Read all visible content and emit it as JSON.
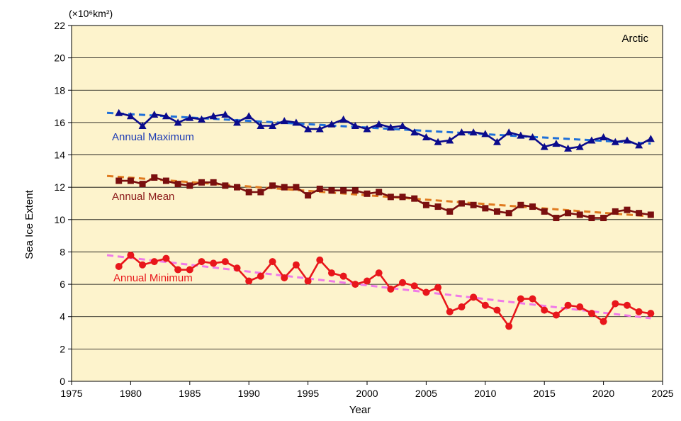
{
  "chart_data": {
    "type": "line",
    "title": "Arctic",
    "unit": "(×10⁶km²)",
    "xlabel": "Year",
    "ylabel": "Sea Ice Extent",
    "xlim": [
      1975,
      2025
    ],
    "ylim": [
      0,
      22
    ],
    "xticks": [
      1975,
      1980,
      1985,
      1990,
      1995,
      2000,
      2005,
      2010,
      2015,
      2020,
      2025
    ],
    "yticks": [
      0,
      2,
      4,
      6,
      8,
      10,
      12,
      14,
      16,
      18,
      20,
      22
    ],
    "grid": "horizontal",
    "background_color": "#FDF3CC",
    "years": [
      1979,
      1980,
      1981,
      1982,
      1983,
      1984,
      1985,
      1986,
      1987,
      1988,
      1989,
      1990,
      1991,
      1992,
      1993,
      1994,
      1995,
      1996,
      1997,
      1998,
      1999,
      2000,
      2001,
      2002,
      2003,
      2004,
      2005,
      2006,
      2007,
      2008,
      2009,
      2010,
      2011,
      2012,
      2013,
      2014,
      2015,
      2016,
      2017,
      2018,
      2019,
      2020,
      2021,
      2022,
      2023,
      2024
    ],
    "series": [
      {
        "name": "Annual Maximum",
        "color": "#0B0B8C",
        "label_color": "#1E3CB4",
        "marker": "triangle",
        "values": [
          16.6,
          16.4,
          15.8,
          16.5,
          16.4,
          16.0,
          16.3,
          16.2,
          16.4,
          16.5,
          16.0,
          16.4,
          15.8,
          15.8,
          16.1,
          16.0,
          15.6,
          15.6,
          15.9,
          16.2,
          15.8,
          15.6,
          15.9,
          15.7,
          15.8,
          15.4,
          15.1,
          14.8,
          14.9,
          15.4,
          15.4,
          15.3,
          14.8,
          15.4,
          15.2,
          15.1,
          14.5,
          14.7,
          14.4,
          14.5,
          14.9,
          15.1,
          14.8,
          14.9,
          14.6,
          15.0
        ],
        "trend": {
          "color": "#1E6FD9",
          "start": [
            1978,
            16.6
          ],
          "end": [
            2024,
            14.7
          ]
        }
      },
      {
        "name": "Annual Mean",
        "color": "#7A0F0F",
        "label_color": "#8B1A1A",
        "marker": "square",
        "values": [
          12.4,
          12.4,
          12.2,
          12.6,
          12.4,
          12.2,
          12.1,
          12.3,
          12.3,
          12.1,
          12.0,
          11.7,
          11.7,
          12.1,
          12.0,
          12.0,
          11.5,
          11.9,
          11.8,
          11.8,
          11.8,
          11.6,
          11.7,
          11.4,
          11.4,
          11.3,
          10.9,
          10.8,
          10.5,
          11.0,
          10.9,
          10.7,
          10.5,
          10.4,
          10.9,
          10.8,
          10.5,
          10.1,
          10.4,
          10.3,
          10.1,
          10.1,
          10.5,
          10.6,
          10.4,
          10.3
        ],
        "trend": {
          "color": "#E07A1F",
          "start": [
            1978,
            12.7
          ],
          "end": [
            2024,
            10.2
          ]
        }
      },
      {
        "name": "Annual Minimum",
        "color": "#E8161B",
        "label_color": "#E8161B",
        "marker": "circle",
        "values": [
          7.1,
          7.8,
          7.2,
          7.4,
          7.6,
          6.9,
          6.9,
          7.4,
          7.3,
          7.4,
          7.0,
          6.2,
          6.5,
          7.4,
          6.4,
          7.2,
          6.2,
          7.5,
          6.7,
          6.5,
          6.0,
          6.2,
          6.7,
          5.7,
          6.1,
          5.9,
          5.5,
          5.8,
          4.3,
          4.6,
          5.2,
          4.7,
          4.4,
          3.4,
          5.1,
          5.1,
          4.4,
          4.1,
          4.7,
          4.6,
          4.2,
          3.7,
          4.8,
          4.7,
          4.3,
          4.2
        ],
        "trend": {
          "color": "#F07AE8",
          "start": [
            1978,
            7.8
          ],
          "end": [
            2024,
            3.9
          ]
        }
      }
    ]
  }
}
